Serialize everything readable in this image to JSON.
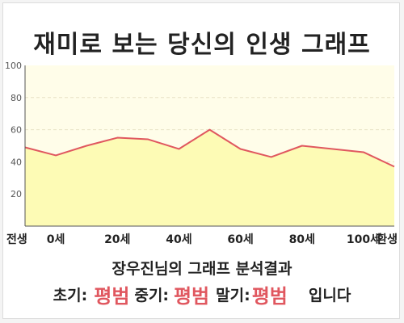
{
  "title": "재미로 보는 당신의 인생 그래프",
  "subtitle": "장우진님의 그래프 분석결과",
  "result": {
    "early_label": "초기:",
    "early_value": "평범",
    "middle_label": "중기:",
    "middle_value": "평범",
    "late_label": "말기:",
    "late_value": "평범",
    "suffix": "입니다"
  },
  "colors": {
    "line": "#e0575f",
    "fill": "#fdfbb5",
    "plot_bg": "#fffde9",
    "accent": "#e0575f"
  },
  "chart_data": {
    "type": "area",
    "title": "재미로 보는 당신의 인생 그래프",
    "xlabel": "",
    "ylabel": "",
    "ylim": [
      0,
      100
    ],
    "yticks": [
      20,
      40,
      60,
      80,
      100
    ],
    "xlim": [
      -10,
      110
    ],
    "xticks": [
      {
        "value": -10,
        "label": "전생"
      },
      {
        "value": 0,
        "label": "0세"
      },
      {
        "value": 20,
        "label": "20세"
      },
      {
        "value": 40,
        "label": "40세"
      },
      {
        "value": 60,
        "label": "60세"
      },
      {
        "value": 80,
        "label": "80세"
      },
      {
        "value": 100,
        "label": "100세"
      },
      {
        "value": 110,
        "label": "환생"
      }
    ],
    "grid": true,
    "x": [
      -10,
      0,
      10,
      20,
      30,
      40,
      50,
      60,
      70,
      80,
      90,
      100,
      110
    ],
    "values": [
      49,
      44,
      50,
      55,
      54,
      48,
      60,
      48,
      43,
      50,
      48,
      46,
      37
    ]
  }
}
